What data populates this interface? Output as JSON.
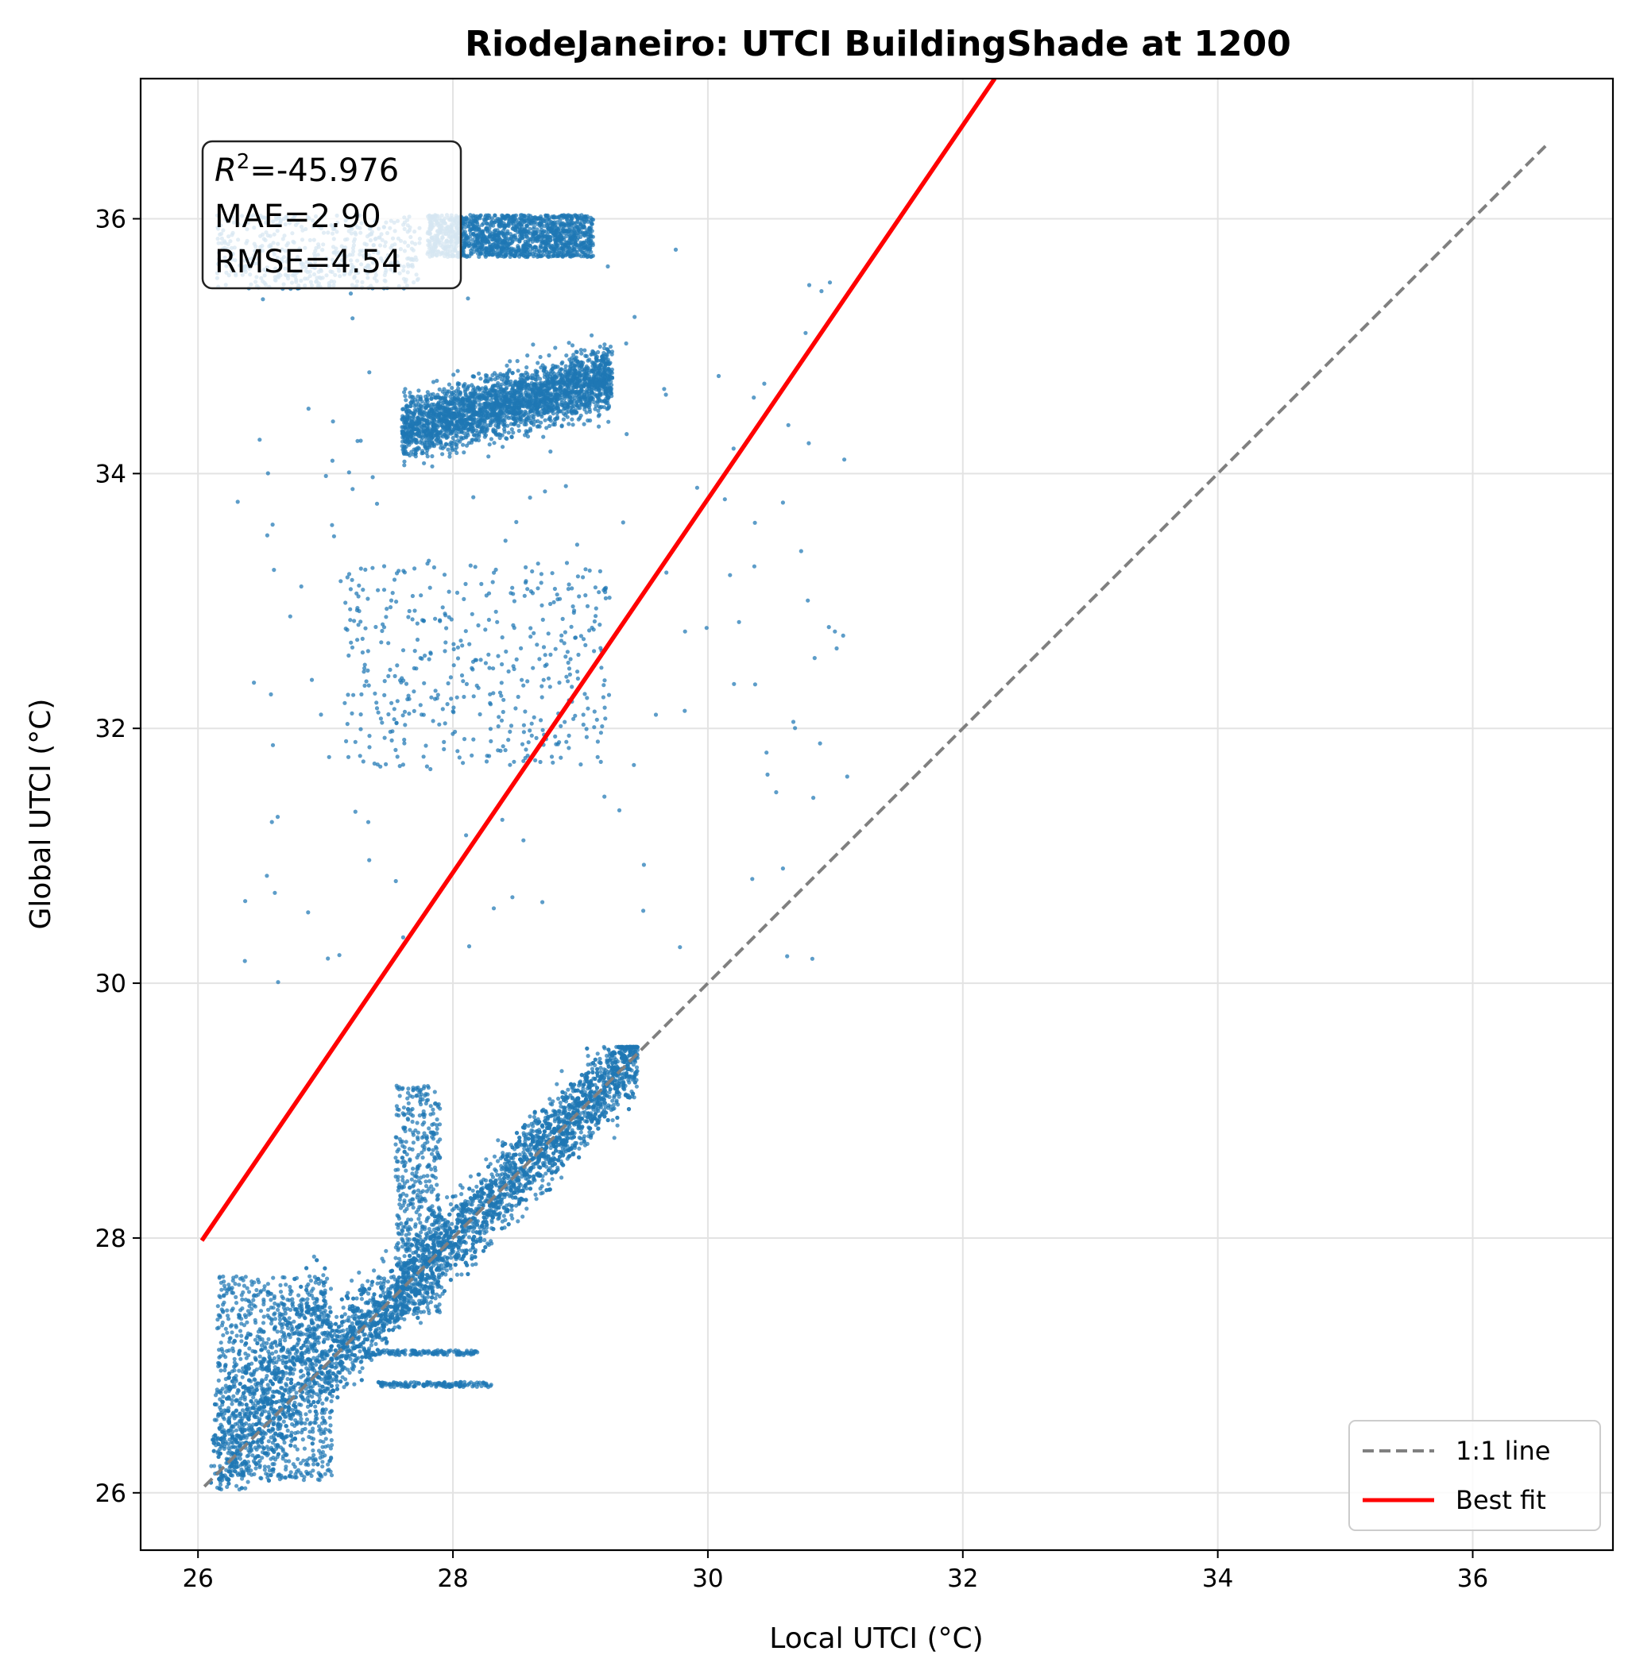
{
  "chart_data": {
    "type": "scatter",
    "title": "RiodeJaneiro: UTCI BuildingShade at 1200",
    "xlabel": "Local UTCI (°C)",
    "ylabel": "Global UTCI (°C)",
    "xlim": [
      25.55,
      37.1
    ],
    "ylim": [
      25.55,
      37.1
    ],
    "x_ticks": [
      26,
      28,
      30,
      32,
      34,
      36
    ],
    "y_ticks": [
      26,
      28,
      30,
      32,
      34,
      36
    ],
    "x_tick_labels": [
      "26",
      "28",
      "30",
      "32",
      "34",
      "36"
    ],
    "y_tick_labels": [
      "26",
      "28",
      "30",
      "32",
      "34",
      "36"
    ],
    "grid": true,
    "legend_position": "bottom-right",
    "stats": {
      "r2_symbol": "R",
      "r2_sup": "2",
      "r2_value": "=-45.976",
      "mae": "MAE=2.90",
      "rmse": "RMSE=4.54"
    },
    "series": [
      {
        "name": "1:1 line",
        "type": "line",
        "style": "dashed",
        "color": "#808080",
        "points": [
          [
            26.05,
            26.05
          ],
          [
            36.6,
            36.6
          ]
        ]
      },
      {
        "name": "Best fit",
        "type": "line",
        "style": "solid",
        "color": "#ff0000",
        "points": [
          [
            26.03,
            27.98
          ],
          [
            32.25,
            37.1
          ]
        ]
      }
    ],
    "scatter": {
      "color": "#1f77b4",
      "clusters": [
        {
          "region": "lower",
          "x_range": [
            26.1,
            29.6
          ],
          "y_range": [
            26.1,
            29.5
          ]
        },
        {
          "region": "upper",
          "x_range": [
            27.5,
            29.3
          ],
          "y_range": [
            34.0,
            35.4
          ]
        },
        {
          "region": "top-band",
          "x_range": [
            26.1,
            29.2
          ],
          "y_range": [
            35.4,
            36.05
          ]
        },
        {
          "region": "middle",
          "x_range": [
            27.0,
            29.4
          ],
          "y_range": [
            31.7,
            33.4
          ]
        }
      ]
    }
  }
}
